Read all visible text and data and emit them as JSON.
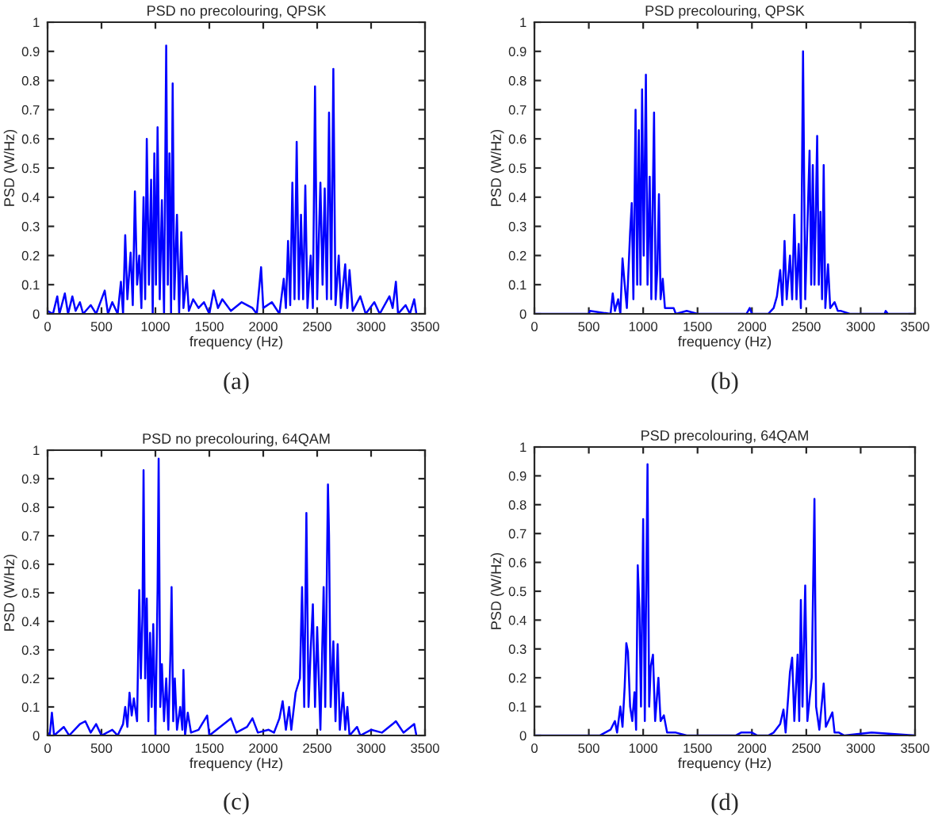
{
  "chart_data": [
    {
      "type": "line",
      "title": "PSD no precolouring, QPSK",
      "xlabel": "frequency (Hz)",
      "ylabel": "PSD (W/Hz)",
      "annotations": [
        "(a)"
      ],
      "xlim": [
        0,
        3500
      ],
      "ylim": [
        0,
        1
      ],
      "xticks": [
        0,
        500,
        1000,
        1500,
        2000,
        2500,
        3000,
        3500
      ],
      "yticks": [
        0,
        0.1,
        0.2,
        0.3,
        0.4,
        0.5,
        0.6,
        0.7,
        0.8,
        0.9,
        1
      ],
      "grid": false,
      "legend": false,
      "marker": "none",
      "line_style": "solid",
      "series": [
        {
          "color": "#0000ff",
          "x": [
            0,
            50,
            90,
            110,
            160,
            190,
            230,
            260,
            300,
            330,
            400,
            450,
            530,
            560,
            600,
            650,
            680,
            700,
            720,
            740,
            770,
            790,
            810,
            830,
            850,
            870,
            890,
            905,
            920,
            940,
            960,
            975,
            990,
            1005,
            1020,
            1040,
            1060,
            1080,
            1100,
            1115,
            1130,
            1145,
            1160,
            1175,
            1200,
            1220,
            1240,
            1260,
            1290,
            1310,
            1350,
            1400,
            1450,
            1500,
            1540,
            1580,
            1620,
            1700,
            1800,
            1900,
            1940,
            1980,
            2000,
            2080,
            2150,
            2190,
            2210,
            2230,
            2250,
            2270,
            2290,
            2310,
            2330,
            2350,
            2370,
            2390,
            2410,
            2440,
            2460,
            2480,
            2500,
            2530,
            2550,
            2570,
            2590,
            2610,
            2630,
            2650,
            2670,
            2700,
            2720,
            2760,
            2780,
            2800,
            2830,
            2900,
            2950,
            3030,
            3080,
            3170,
            3200,
            3230,
            3250,
            3320,
            3360,
            3400,
            3420
          ],
          "values": [
            0.01,
            0.0,
            0.06,
            0.0,
            0.07,
            0.0,
            0.06,
            0.01,
            0.04,
            0.0,
            0.03,
            0.0,
            0.08,
            0.0,
            0.04,
            0.0,
            0.11,
            0.0,
            0.27,
            0.05,
            0.21,
            0.03,
            0.42,
            0.1,
            0.2,
            0.02,
            0.4,
            0.05,
            0.6,
            0.1,
            0.46,
            0.0,
            0.55,
            0.1,
            0.64,
            0.05,
            0.39,
            0.0,
            0.92,
            0.1,
            0.55,
            0.0,
            0.79,
            0.05,
            0.34,
            0.0,
            0.28,
            0.02,
            0.13,
            0.01,
            0.05,
            0.02,
            0.04,
            0.0,
            0.08,
            0.02,
            0.05,
            0.01,
            0.04,
            0.02,
            0.0,
            0.16,
            0.02,
            0.04,
            0.0,
            0.12,
            0.02,
            0.25,
            0.03,
            0.45,
            0.05,
            0.59,
            0.05,
            0.34,
            0.05,
            0.44,
            0.02,
            0.2,
            0.02,
            0.78,
            0.05,
            0.45,
            0.1,
            0.43,
            0.05,
            0.69,
            0.05,
            0.84,
            0.03,
            0.2,
            0.02,
            0.17,
            0.02,
            0.15,
            0.01,
            0.06,
            0.0,
            0.04,
            0.0,
            0.06,
            0.02,
            0.11,
            0.0,
            0.03,
            0.0,
            0.05,
            0.0
          ]
        }
      ]
    },
    {
      "type": "line",
      "title": "PSD precolouring, QPSK",
      "xlabel": "frequency (Hz)",
      "ylabel": "PSD (W/Hz)",
      "annotations": [
        "(b)"
      ],
      "xlim": [
        0,
        3500
      ],
      "ylim": [
        0,
        1
      ],
      "xticks": [
        0,
        500,
        1000,
        1500,
        2000,
        2500,
        3000,
        3500
      ],
      "yticks": [
        0,
        0.1,
        0.2,
        0.3,
        0.4,
        0.5,
        0.6,
        0.7,
        0.8,
        0.9,
        1
      ],
      "grid": false,
      "legend": false,
      "marker": "none",
      "line_style": "solid",
      "series": [
        {
          "color": "#0000ff",
          "x": [
            0,
            500,
            510,
            700,
            720,
            740,
            770,
            790,
            810,
            830,
            850,
            880,
            895,
            910,
            930,
            945,
            960,
            975,
            990,
            1005,
            1025,
            1040,
            1060,
            1075,
            1100,
            1115,
            1130,
            1145,
            1160,
            1180,
            1200,
            1280,
            1300,
            1400,
            1500,
            1950,
            1980,
            2000,
            2150,
            2200,
            2230,
            2260,
            2280,
            2300,
            2320,
            2350,
            2370,
            2390,
            2410,
            2430,
            2450,
            2470,
            2490,
            2510,
            2530,
            2545,
            2560,
            2575,
            2600,
            2615,
            2630,
            2645,
            2660,
            2675,
            2700,
            2720,
            2760,
            2790,
            2820,
            2900,
            3220,
            3230,
            3250,
            3500
          ],
          "values": [
            0,
            0,
            0.01,
            0,
            0.07,
            0.01,
            0.05,
            0.0,
            0.19,
            0.1,
            0.02,
            0.28,
            0.38,
            0.05,
            0.7,
            0.1,
            0.63,
            0.1,
            0.77,
            0.2,
            0.82,
            0.1,
            0.47,
            0.05,
            0.69,
            0.05,
            0.15,
            0.41,
            0.05,
            0.12,
            0.02,
            0.02,
            0,
            0.01,
            0,
            0,
            0.02,
            0,
            0,
            0.02,
            0.06,
            0.15,
            0.03,
            0.25,
            0.05,
            0.2,
            0.05,
            0.34,
            0.05,
            0.24,
            0.02,
            0.9,
            0.05,
            0.3,
            0.56,
            0.1,
            0.51,
            0.1,
            0.61,
            0.1,
            0.35,
            0.05,
            0.51,
            0.02,
            0.17,
            0.02,
            0.04,
            0.01,
            0.01,
            0,
            0,
            0.01,
            0,
            0
          ]
        }
      ]
    },
    {
      "type": "line",
      "title": "PSD no precolouring, 64QAM",
      "xlabel": "frequency (Hz)",
      "ylabel": "PSD (W/Hz)",
      "annotations": [
        "(c)"
      ],
      "xlim": [
        0,
        3500
      ],
      "ylim": [
        0,
        1
      ],
      "xticks": [
        0,
        500,
        1000,
        1500,
        2000,
        2500,
        3000,
        3500
      ],
      "yticks": [
        0,
        0.1,
        0.2,
        0.3,
        0.4,
        0.5,
        0.6,
        0.7,
        0.8,
        0.9,
        1
      ],
      "grid": false,
      "legend": false,
      "marker": "none",
      "line_style": "solid",
      "series": [
        {
          "color": "#0000ff",
          "x": [
            0,
            20,
            40,
            60,
            150,
            200,
            300,
            350,
            400,
            450,
            500,
            600,
            650,
            700,
            720,
            740,
            760,
            780,
            800,
            830,
            850,
            865,
            880,
            890,
            905,
            920,
            935,
            950,
            965,
            980,
            1000,
            1020,
            1030,
            1045,
            1060,
            1080,
            1100,
            1120,
            1140,
            1150,
            1165,
            1180,
            1200,
            1230,
            1250,
            1260,
            1275,
            1300,
            1330,
            1400,
            1480,
            1500,
            1600,
            1700,
            1750,
            1850,
            1900,
            1950,
            2050,
            2100,
            2150,
            2180,
            2210,
            2240,
            2260,
            2300,
            2340,
            2360,
            2380,
            2400,
            2420,
            2440,
            2460,
            2480,
            2500,
            2530,
            2560,
            2575,
            2600,
            2610,
            2625,
            2650,
            2670,
            2690,
            2710,
            2740,
            2760,
            2780,
            2800,
            2870,
            2900,
            3000,
            3100,
            3200,
            3230,
            3300,
            3400,
            3420
          ],
          "values": [
            0.01,
            0.0,
            0.08,
            0.0,
            0.03,
            0.0,
            0.04,
            0.05,
            0.01,
            0.04,
            0.0,
            0.02,
            0.0,
            0.04,
            0.1,
            0.03,
            0.15,
            0.07,
            0.13,
            0.05,
            0.51,
            0.2,
            0.42,
            0.93,
            0.2,
            0.48,
            0.05,
            0.36,
            0.1,
            0.39,
            0.0,
            0.51,
            0.97,
            0.1,
            0.25,
            0.05,
            0.2,
            0.02,
            0.3,
            0.52,
            0.05,
            0.2,
            0.02,
            0.1,
            0.02,
            0.23,
            0.0,
            0.08,
            0.01,
            0.02,
            0.07,
            0.0,
            0.03,
            0.06,
            0.01,
            0.03,
            0.06,
            0.01,
            0.02,
            0.01,
            0.06,
            0.12,
            0.02,
            0.1,
            0.02,
            0.15,
            0.2,
            0.52,
            0.1,
            0.78,
            0.1,
            0.3,
            0.46,
            0.1,
            0.38,
            0.02,
            0.52,
            0.1,
            0.88,
            0.7,
            0.1,
            0.33,
            0.05,
            0.32,
            0.02,
            0.15,
            0.02,
            0.1,
            0.0,
            0.03,
            0.0,
            0.02,
            0.01,
            0.04,
            0.05,
            0.01,
            0.04,
            0.0
          ]
        }
      ]
    },
    {
      "type": "line",
      "title": "PSD precolouring, 64QAM",
      "xlabel": "frequency (Hz)",
      "ylabel": "PSD (W/Hz)",
      "annotations": [
        "(d)"
      ],
      "xlim": [
        0,
        3500
      ],
      "ylim": [
        0,
        1
      ],
      "xticks": [
        0,
        500,
        1000,
        1500,
        2000,
        2500,
        3000,
        3500
      ],
      "yticks": [
        0,
        0.1,
        0.2,
        0.3,
        0.4,
        0.5,
        0.6,
        0.7,
        0.8,
        0.9,
        1
      ],
      "grid": false,
      "legend": false,
      "marker": "none",
      "line_style": "solid",
      "series": [
        {
          "color": "#0000ff",
          "x": [
            0,
            600,
            650,
            700,
            740,
            760,
            790,
            810,
            830,
            845,
            860,
            880,
            900,
            920,
            935,
            950,
            965,
            980,
            1000,
            1015,
            1040,
            1055,
            1070,
            1090,
            1110,
            1140,
            1160,
            1190,
            1220,
            1300,
            1400,
            1850,
            1900,
            2000,
            2050,
            2150,
            2200,
            2260,
            2290,
            2310,
            2350,
            2370,
            2390,
            2420,
            2435,
            2450,
            2465,
            2490,
            2510,
            2550,
            2575,
            2590,
            2620,
            2660,
            2680,
            2740,
            2760,
            2800,
            2850,
            3100,
            3500
          ],
          "values": [
            0,
            0,
            0.01,
            0.02,
            0.05,
            0.01,
            0.1,
            0.03,
            0.17,
            0.32,
            0.29,
            0.1,
            0.05,
            0.15,
            0.02,
            0.59,
            0.44,
            0.1,
            0.75,
            0.05,
            0.94,
            0.1,
            0.24,
            0.28,
            0.05,
            0.2,
            0.05,
            0.07,
            0.01,
            0.01,
            0,
            0,
            0.01,
            0.01,
            0,
            0,
            0.01,
            0.04,
            0.09,
            0.01,
            0.22,
            0.27,
            0.05,
            0.28,
            0.05,
            0.47,
            0.1,
            0.52,
            0.05,
            0.2,
            0.82,
            0.1,
            0.02,
            0.18,
            0.03,
            0.08,
            0.01,
            0.01,
            0,
            0.01,
            0
          ]
        }
      ]
    }
  ]
}
